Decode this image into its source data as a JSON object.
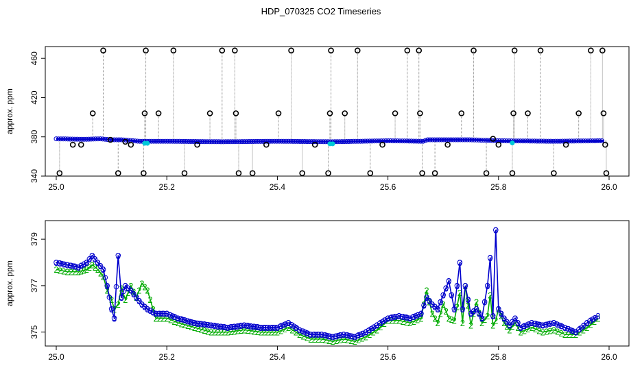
{
  "title": "HDP_070325  CO2 Timeseries",
  "colors": {
    "raw_points": "#000000",
    "raw_lines": "#8a8a8a",
    "series_blue": "#0000cc",
    "series_green": "#00aa00",
    "series_cyan": "#00c8d8"
  },
  "chart_data": [
    {
      "type": "scatter",
      "ylabel": "approx. ppm",
      "xlabel": "",
      "xlim": [
        25.0,
        26.0
      ],
      "ylim": [
        340,
        472
      ],
      "x_ticks": [
        "25.0",
        "25.2",
        "25.4",
        "25.6",
        "25.8",
        "26.0"
      ],
      "y_ticks": [
        "340",
        "380",
        "420",
        "460"
      ],
      "x_tick_values": [
        25.0,
        25.2,
        25.4,
        25.6,
        25.8,
        26.0
      ],
      "y_tick_values": [
        340,
        380,
        420,
        460
      ],
      "baseline": [
        [
          25.0,
          378
        ],
        [
          25.05,
          377.5
        ],
        [
          25.08,
          378
        ],
        [
          25.1,
          377
        ],
        [
          25.12,
          377
        ],
        [
          25.15,
          375.5
        ],
        [
          25.2,
          375.5
        ],
        [
          25.3,
          375
        ],
        [
          25.4,
          375.5
        ],
        [
          25.5,
          375
        ],
        [
          25.6,
          376
        ],
        [
          25.665,
          375.5
        ],
        [
          25.67,
          377
        ],
        [
          25.75,
          377
        ],
        [
          25.8,
          376
        ],
        [
          25.9,
          375.5
        ],
        [
          25.99,
          376
        ]
      ],
      "outliers": [
        [
          25.006,
          343
        ],
        [
          25.03,
          372
        ],
        [
          25.045,
          372
        ],
        [
          25.066,
          404
        ],
        [
          25.085,
          468
        ],
        [
          25.098,
          377
        ],
        [
          25.112,
          343
        ],
        [
          25.125,
          375
        ],
        [
          25.135,
          372
        ],
        [
          25.158,
          343
        ],
        [
          25.16,
          404
        ],
        [
          25.162,
          468
        ],
        [
          25.185,
          404
        ],
        [
          25.212,
          468
        ],
        [
          25.232,
          343
        ],
        [
          25.255,
          372
        ],
        [
          25.278,
          404
        ],
        [
          25.3,
          468
        ],
        [
          25.323,
          468
        ],
        [
          25.325,
          404
        ],
        [
          25.33,
          343
        ],
        [
          25.355,
          343
        ],
        [
          25.38,
          372
        ],
        [
          25.402,
          404
        ],
        [
          25.425,
          468
        ],
        [
          25.445,
          343
        ],
        [
          25.468,
          372
        ],
        [
          25.492,
          343
        ],
        [
          25.495,
          404
        ],
        [
          25.497,
          468
        ],
        [
          25.522,
          404
        ],
        [
          25.545,
          468
        ],
        [
          25.568,
          343
        ],
        [
          25.59,
          372
        ],
        [
          25.613,
          404
        ],
        [
          25.635,
          468
        ],
        [
          25.656,
          468
        ],
        [
          25.658,
          404
        ],
        [
          25.662,
          343
        ],
        [
          25.685,
          343
        ],
        [
          25.708,
          372
        ],
        [
          25.733,
          404
        ],
        [
          25.755,
          468
        ],
        [
          25.778,
          343
        ],
        [
          25.79,
          378
        ],
        [
          25.8,
          372
        ],
        [
          25.825,
          343
        ],
        [
          25.827,
          404
        ],
        [
          25.829,
          468
        ],
        [
          25.853,
          404
        ],
        [
          25.876,
          468
        ],
        [
          25.9,
          343
        ],
        [
          25.922,
          372
        ],
        [
          25.945,
          404
        ],
        [
          25.967,
          468
        ],
        [
          25.988,
          468
        ],
        [
          25.99,
          404
        ],
        [
          25.993,
          372
        ],
        [
          25.995,
          343
        ]
      ]
    },
    {
      "type": "line",
      "ylabel": "approx. ppm",
      "xlabel": "",
      "xlim": [
        25.0,
        26.0
      ],
      "ylim": [
        374.4,
        379.8
      ],
      "x_ticks": [
        "25.0",
        "25.2",
        "25.4",
        "25.6",
        "25.8",
        "26.0"
      ],
      "y_ticks": [
        "375",
        "377",
        "379"
      ],
      "x_tick_values": [
        25.0,
        25.2,
        25.4,
        25.6,
        25.8,
        26.0
      ],
      "y_tick_values": [
        375,
        377,
        379
      ],
      "series": [
        {
          "marker": "3",
          "x": [
            25.0,
            25.02,
            25.04,
            25.055,
            25.065,
            25.075,
            25.085,
            25.092,
            25.1,
            25.105,
            25.112,
            25.118,
            25.125,
            25.135,
            25.145,
            25.155,
            25.165,
            25.18,
            25.2,
            25.22,
            25.25,
            25.28,
            25.31,
            25.34,
            25.37,
            25.4,
            25.42,
            25.44,
            25.46,
            25.48,
            25.5,
            25.52,
            25.54,
            25.56,
            25.58,
            25.6,
            25.62,
            25.64,
            25.66,
            25.67,
            25.68,
            25.69,
            25.7,
            25.71,
            25.72,
            25.73,
            25.735,
            25.74,
            25.75,
            25.76,
            25.77,
            25.78,
            25.785,
            25.79,
            25.795,
            25.8,
            25.81,
            25.82,
            25.83,
            25.84,
            25.86,
            25.88,
            25.9,
            25.92,
            25.94,
            25.96,
            25.98
          ],
          "values": [
            378.0,
            377.9,
            377.8,
            378.0,
            378.3,
            378.0,
            377.7,
            377.0,
            376.0,
            375.6,
            378.3,
            376.5,
            377.0,
            376.8,
            376.5,
            376.2,
            376.0,
            375.8,
            375.8,
            375.6,
            375.4,
            375.3,
            375.2,
            375.3,
            375.2,
            375.2,
            375.4,
            375.1,
            374.9,
            374.9,
            374.8,
            374.9,
            374.8,
            375.0,
            375.3,
            375.6,
            375.7,
            375.6,
            375.8,
            376.5,
            376.2,
            376.0,
            376.6,
            377.2,
            376.0,
            378.0,
            376.0,
            377.0,
            375.8,
            376.0,
            375.6,
            377.0,
            378.2,
            375.7,
            379.4,
            376.0,
            375.6,
            375.3,
            375.6,
            375.2,
            375.4,
            375.3,
            375.4,
            375.2,
            375.0,
            375.4,
            375.7
          ]
        },
        {
          "marker": "2",
          "x": [
            25.0,
            25.02,
            25.04,
            25.055,
            25.065,
            25.075,
            25.085,
            25.092,
            25.1,
            25.105,
            25.112,
            25.118,
            25.125,
            25.135,
            25.145,
            25.155,
            25.165,
            25.18,
            25.2,
            25.22,
            25.25,
            25.28,
            25.31,
            25.34,
            25.37,
            25.4,
            25.42,
            25.44,
            25.46,
            25.48,
            25.5,
            25.52,
            25.54,
            25.56,
            25.58,
            25.6,
            25.62,
            25.64,
            25.66,
            25.67,
            25.68,
            25.69,
            25.7,
            25.71,
            25.72,
            25.73,
            25.735,
            25.74,
            25.75,
            25.76,
            25.77,
            25.78,
            25.785,
            25.79,
            25.795,
            25.8,
            25.81,
            25.82,
            25.83,
            25.84,
            25.86,
            25.88,
            25.9,
            25.92,
            25.94,
            25.96,
            25.98
          ],
          "values": [
            377.7,
            377.6,
            377.6,
            377.7,
            377.9,
            377.7,
            377.4,
            376.8,
            376.4,
            376.0,
            376.2,
            376.9,
            376.4,
            377.0,
            376.5,
            377.1,
            376.8,
            375.6,
            375.6,
            375.4,
            375.2,
            375.0,
            375.0,
            375.1,
            375.0,
            375.0,
            375.2,
            374.9,
            374.7,
            374.7,
            374.6,
            374.7,
            374.6,
            374.8,
            375.1,
            375.5,
            375.5,
            375.4,
            375.6,
            376.8,
            375.8,
            375.4,
            376.2,
            375.6,
            375.5,
            376.7,
            375.4,
            377.0,
            375.3,
            376.3,
            375.4,
            375.7,
            376.6,
            375.3,
            375.5,
            376.0,
            375.4,
            375.1,
            375.4,
            375.0,
            375.2,
            375.0,
            375.1,
            374.9,
            374.9,
            375.2,
            375.6
          ]
        }
      ]
    }
  ]
}
